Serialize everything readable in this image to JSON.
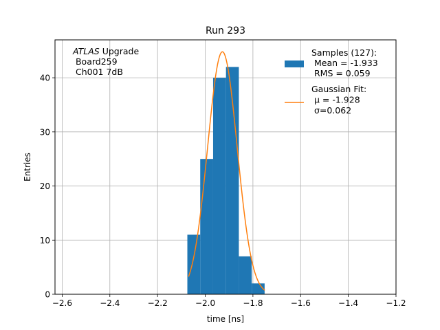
{
  "chart_data": {
    "type": "bar",
    "title": "Run 293",
    "xlabel": "time [ns]",
    "ylabel": "Entries",
    "xlim": [
      -2.63,
      -1.2
    ],
    "ylim": [
      0,
      47
    ],
    "grid": true,
    "x_ticks": [
      -2.6,
      -2.4,
      -2.2,
      -2.0,
      -1.8,
      -1.6,
      -1.4,
      -1.2
    ],
    "x_tick_labels": [
      "−2.6",
      "−2.4",
      "−2.2",
      "−2.0",
      "−1.8",
      "−1.6",
      "−1.4",
      "−1.2"
    ],
    "y_ticks": [
      0,
      10,
      20,
      30,
      40
    ],
    "y_tick_labels": [
      "0",
      "10",
      "20",
      "30",
      "40"
    ],
    "histogram": {
      "name": "Samples (127):",
      "color": "#1f77b4",
      "bins": [
        {
          "x0": -2.075,
          "x1": -2.021,
          "count": 11
        },
        {
          "x0": -2.021,
          "x1": -1.967,
          "count": 25
        },
        {
          "x0": -1.967,
          "x1": -1.913,
          "count": 40
        },
        {
          "x0": -1.913,
          "x1": -1.859,
          "count": 42
        },
        {
          "x0": -1.859,
          "x1": -1.805,
          "count": 7
        },
        {
          "x0": -1.805,
          "x1": -1.751,
          "count": 2
        }
      ]
    },
    "fit": {
      "name": "Gaussian Fit:",
      "color": "#ff7f0e",
      "mu": -1.928,
      "sigma": 0.062,
      "amplitude": 44.8,
      "x_range": [
        -2.07,
        -1.75
      ]
    },
    "legend": {
      "position": "top-right",
      "entries": [
        {
          "lines": [
            "Samples (127):",
            " Mean = -1.933",
            " RMS = 0.059"
          ],
          "swatch": "patch"
        },
        {
          "lines": [
            "Gaussian Fit:",
            " μ = -1.928",
            " σ=0.062"
          ],
          "swatch": "line"
        }
      ]
    },
    "annotation": {
      "position": "top-left",
      "lines": [
        "ATLAS Upgrade",
        " Board259",
        " Ch001 7dB"
      ]
    }
  }
}
